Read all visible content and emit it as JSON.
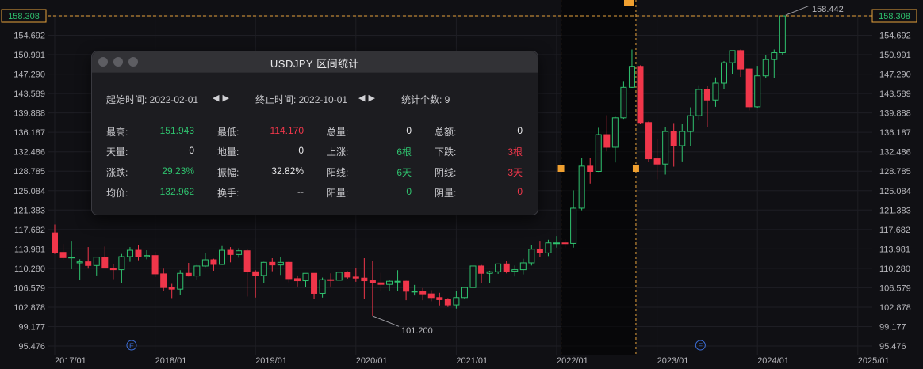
{
  "panel": {
    "title": "USDJPY 区间统计",
    "start_label": "起始时间: 2022-02-01",
    "end_label": "终止时间: 2022-10-01",
    "count_label": "统计个数: 9",
    "prev_icon": "triangle-left-icon",
    "next_icon": "triangle-right-icon",
    "rows": [
      [
        {
          "l": "最高:",
          "v": "151.943",
          "c": "green"
        },
        {
          "l": "最低:",
          "v": "114.170",
          "c": "red"
        },
        {
          "l": "总量:",
          "v": "0",
          "c": "white"
        },
        {
          "l": "总额:",
          "v": "0",
          "c": "white"
        }
      ],
      [
        {
          "l": "天量:",
          "v": "0",
          "c": "white"
        },
        {
          "l": "地量:",
          "v": "0",
          "c": "white"
        },
        {
          "l": "上涨:",
          "v": "6根",
          "c": "green"
        },
        {
          "l": "下跌:",
          "v": "3根",
          "c": "red"
        }
      ],
      [
        {
          "l": "涨跌:",
          "v": "29.23%",
          "c": "green"
        },
        {
          "l": "振幅:",
          "v": "32.82%",
          "c": "white"
        },
        {
          "l": "阳线:",
          "v": "6天",
          "c": "green"
        },
        {
          "l": "阴线:",
          "v": "3天",
          "c": "red"
        }
      ],
      [
        {
          "l": "均价:",
          "v": "132.962",
          "c": "green"
        },
        {
          "l": "换手:",
          "v": "--",
          "c": "white"
        },
        {
          "l": "阳量:",
          "v": "0",
          "c": "green"
        },
        {
          "l": "阴量:",
          "v": "0",
          "c": "red"
        }
      ]
    ]
  },
  "axis": {
    "price_labels": [
      "158.308",
      "154.692",
      "150.991",
      "147.290",
      "143.589",
      "139.888",
      "136.187",
      "132.486",
      "128.785",
      "125.084",
      "121.383",
      "117.682",
      "113.981",
      "110.280",
      "106.579",
      "102.878",
      "99.177",
      "95.476"
    ],
    "date_labels": [
      "2017/01",
      "2018/01",
      "2019/01",
      "2020/01",
      "2021/01",
      "2022/01",
      "2023/01",
      "2024/01",
      "2025/01"
    ],
    "current_price": "158.308",
    "high_label": "158.442",
    "low_label": "101.200",
    "event_marker": "E"
  },
  "colors": {
    "up": "#2fc26e",
    "down": "#f0364a",
    "crosshair": "#e6a23c",
    "grid": "#1e1e24"
  },
  "chart_data": {
    "type": "candlestick",
    "interval": "monthly",
    "start": "2016-12",
    "ylim": [
      95.476,
      158.308
    ],
    "note_selected_range": [
      "2022-02-01",
      "2022-10-01"
    ],
    "ohlc": [
      [
        117.0,
        118.6,
        113.0,
        113.3
      ],
      [
        113.3,
        114.9,
        111.9,
        112.3
      ],
      [
        112.3,
        115.5,
        110.1,
        112.4
      ],
      [
        111.3,
        112.0,
        108.0,
        111.5
      ],
      [
        111.5,
        114.3,
        110.2,
        110.8
      ],
      [
        110.8,
        112.0,
        108.9,
        112.4
      ],
      [
        112.4,
        114.4,
        110.6,
        110.3
      ],
      [
        110.3,
        111.0,
        108.2,
        110.0
      ],
      [
        110.0,
        113.0,
        107.5,
        112.5
      ],
      [
        112.5,
        114.3,
        111.5,
        113.7
      ],
      [
        113.7,
        114.7,
        111.8,
        112.5
      ],
      [
        112.5,
        113.7,
        112.0,
        112.7
      ],
      [
        112.7,
        113.4,
        108.6,
        109.2
      ],
      [
        109.2,
        110.2,
        105.9,
        106.6
      ],
      [
        106.6,
        107.3,
        104.6,
        106.3
      ],
      [
        106.3,
        109.9,
        105.2,
        109.3
      ],
      [
        109.3,
        111.3,
        108.7,
        108.8
      ],
      [
        108.8,
        110.9,
        108.1,
        110.7
      ],
      [
        110.7,
        113.2,
        110.5,
        111.9
      ],
      [
        111.9,
        112.1,
        109.8,
        111.0
      ],
      [
        111.0,
        114.5,
        110.9,
        113.7
      ],
      [
        113.7,
        114.3,
        111.4,
        112.9
      ],
      [
        112.9,
        114.1,
        112.3,
        113.6
      ],
      [
        113.6,
        114.0,
        104.9,
        109.6
      ],
      [
        109.6,
        109.9,
        104.7,
        108.9
      ],
      [
        108.9,
        111.5,
        107.5,
        111.4
      ],
      [
        111.4,
        112.2,
        109.7,
        110.9
      ],
      [
        110.9,
        112.4,
        109.0,
        111.4
      ],
      [
        111.4,
        111.7,
        107.6,
        108.3
      ],
      [
        108.3,
        108.9,
        106.8,
        107.9
      ],
      [
        107.9,
        109.1,
        106.7,
        109.3
      ],
      [
        109.3,
        109.3,
        104.5,
        105.5
      ],
      [
        105.5,
        108.5,
        104.7,
        108.1
      ],
      [
        108.1,
        109.3,
        106.8,
        108.0
      ],
      [
        108.0,
        109.6,
        108.1,
        109.5
      ],
      [
        109.5,
        109.7,
        108.3,
        108.6
      ],
      [
        108.6,
        110.3,
        107.7,
        108.4
      ],
      [
        108.4,
        112.2,
        104.5,
        107.9
      ],
      [
        107.9,
        111.7,
        101.2,
        107.5
      ],
      [
        107.5,
        109.4,
        106.0,
        107.2
      ],
      [
        107.2,
        108.1,
        105.9,
        107.8
      ],
      [
        107.8,
        109.9,
        106.0,
        107.8
      ],
      [
        107.8,
        107.9,
        104.2,
        105.9
      ],
      [
        105.9,
        107.1,
        105.1,
        105.9
      ],
      [
        105.9,
        106.5,
        104.2,
        105.4
      ],
      [
        105.4,
        106.1,
        104.0,
        104.7
      ],
      [
        104.7,
        105.6,
        103.2,
        104.3
      ],
      [
        104.3,
        104.6,
        102.9,
        103.3
      ],
      [
        103.3,
        105.9,
        102.6,
        104.7
      ],
      [
        104.7,
        106.7,
        104.4,
        106.6
      ],
      [
        106.6,
        110.9,
        106.3,
        110.7
      ],
      [
        110.7,
        110.9,
        107.5,
        109.3
      ],
      [
        109.3,
        109.8,
        107.5,
        109.6
      ],
      [
        109.6,
        111.1,
        109.2,
        111.1
      ],
      [
        111.1,
        111.7,
        109.3,
        109.7
      ],
      [
        109.7,
        110.8,
        108.7,
        110.0
      ],
      [
        110.0,
        112.1,
        109.1,
        111.3
      ],
      [
        111.3,
        114.7,
        110.8,
        113.9
      ],
      [
        113.9,
        115.5,
        112.5,
        113.2
      ],
      [
        113.2,
        115.7,
        112.6,
        115.1
      ],
      [
        115.1,
        116.4,
        114.2,
        115.1
      ],
      [
        115.1,
        115.8,
        114.2,
        115.0
      ],
      [
        115.0,
        125.1,
        114.2,
        121.7
      ],
      [
        121.7,
        131.3,
        121.3,
        129.7
      ],
      [
        129.7,
        131.3,
        126.4,
        128.7
      ],
      [
        128.7,
        137.0,
        128.6,
        135.7
      ],
      [
        135.7,
        139.4,
        132.5,
        133.3
      ],
      [
        133.3,
        139.1,
        130.4,
        138.9
      ],
      [
        138.9,
        145.9,
        138.7,
        144.7
      ],
      [
        144.7,
        151.9,
        144.6,
        148.7
      ],
      [
        148.7,
        148.9,
        137.7,
        138.0
      ],
      [
        138.0,
        138.2,
        130.5,
        131.1
      ],
      [
        131.1,
        134.8,
        127.2,
        130.1
      ],
      [
        130.1,
        137.1,
        128.1,
        136.3
      ],
      [
        136.3,
        137.9,
        129.6,
        133.6
      ],
      [
        133.6,
        137.8,
        130.6,
        136.3
      ],
      [
        136.3,
        140.9,
        133.5,
        139.3
      ],
      [
        139.3,
        145.1,
        138.4,
        144.3
      ],
      [
        144.3,
        145.0,
        137.2,
        142.3
      ],
      [
        142.3,
        146.6,
        141.0,
        145.5
      ],
      [
        145.5,
        149.7,
        144.4,
        149.4
      ],
      [
        149.4,
        151.7,
        147.3,
        151.7
      ],
      [
        151.7,
        151.9,
        146.7,
        148.2
      ],
      [
        148.2,
        148.3,
        140.3,
        141.0
      ],
      [
        141.0,
        148.8,
        140.8,
        146.9
      ],
      [
        146.9,
        150.9,
        146.5,
        150.0
      ],
      [
        150.0,
        151.9,
        146.5,
        151.3
      ],
      [
        151.3,
        158.4,
        150.8,
        158.3
      ]
    ]
  }
}
